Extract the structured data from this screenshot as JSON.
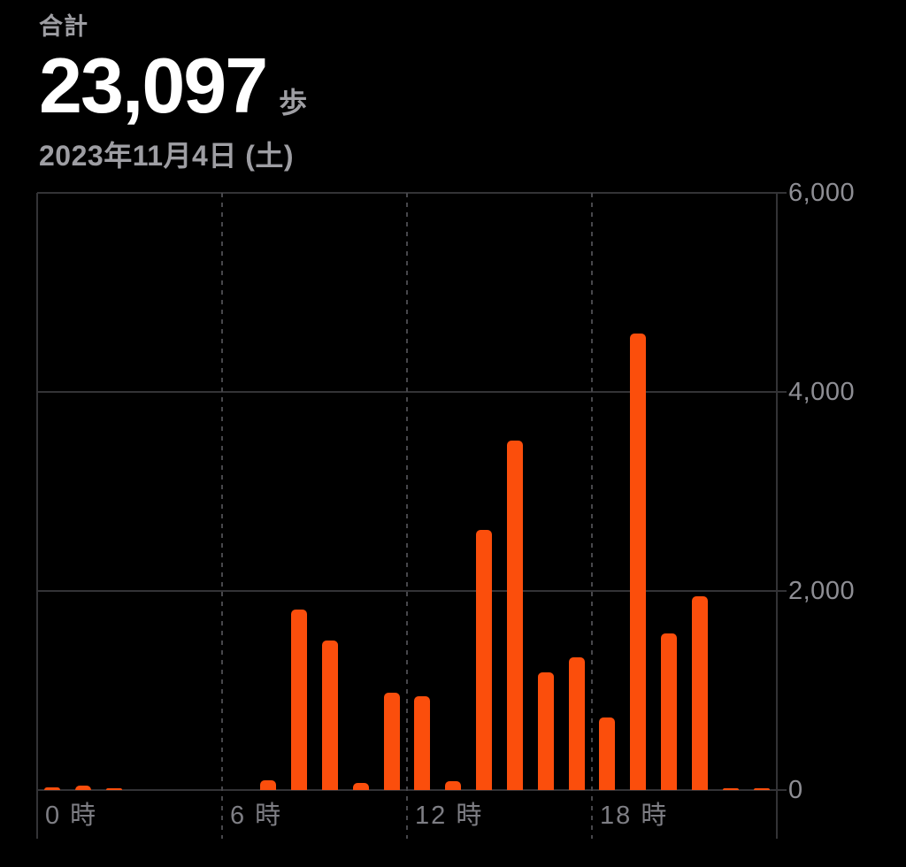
{
  "header": {
    "total_label": "合計",
    "total_value": "23,097",
    "total_unit": "歩",
    "date": "2023年11月4日 (土)"
  },
  "chart_data": {
    "type": "bar",
    "title": "",
    "total_steps_shown": "23,097",
    "categories_hours": [
      0,
      1,
      2,
      3,
      4,
      5,
      6,
      7,
      8,
      9,
      10,
      11,
      12,
      13,
      14,
      15,
      16,
      17,
      18,
      19,
      20,
      21,
      22,
      23
    ],
    "values": [
      30,
      45,
      20,
      0,
      0,
      0,
      0,
      100,
      1810,
      1500,
      70,
      980,
      945,
      85,
      2610,
      3510,
      1180,
      1330,
      730,
      4590,
      1570,
      1950,
      21,
      21
    ],
    "xlabel": "",
    "ylabel": "",
    "ylim": [
      0,
      6000
    ],
    "yticks": [
      {
        "value": 0,
        "label": "0"
      },
      {
        "value": 2000,
        "label": "2,000"
      },
      {
        "value": 4000,
        "label": "4,000"
      },
      {
        "value": 6000,
        "label": "6,000"
      }
    ],
    "xticks": [
      {
        "hour": 0,
        "label": "0 時"
      },
      {
        "hour": 6,
        "label": "6 時"
      },
      {
        "hour": 12,
        "label": "12 時"
      },
      {
        "hour": 18,
        "label": "18 時"
      }
    ],
    "grid": true,
    "legend_position": "none",
    "bar_color": "#FB4E0C"
  },
  "colors": {
    "background": "#000000",
    "bar": "#FB4E0C",
    "grid_line": "#333336",
    "dashed_line": "#47474B",
    "y_label": "#8E8E94",
    "x_label": "#7E7E84",
    "total_value": "#FFFFFF",
    "secondary_text": "#9E9EA3"
  }
}
